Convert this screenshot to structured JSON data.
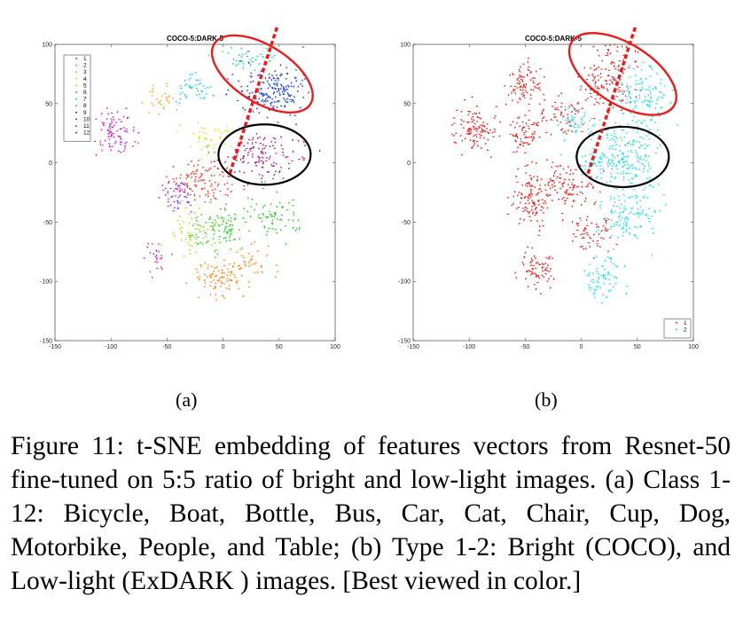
{
  "chart_data": [
    {
      "type": "scatter",
      "title": "COCO-5:DARK-5",
      "xlim": [
        -150,
        100
      ],
      "ylim": [
        -150,
        100
      ],
      "xticks": [
        -150,
        -100,
        -50,
        0,
        50,
        100
      ],
      "yticks": [
        -150,
        -100,
        -50,
        0,
        50,
        100
      ],
      "legend_position": "top-left",
      "series": [
        {
          "name": "1",
          "color": "#f03a2a",
          "clusters": [
            {
              "center": [
                -20,
                -15
              ],
              "spread": [
                14,
                10
              ],
              "count": 110
            }
          ]
        },
        {
          "name": "2",
          "color": "#ff7f0e",
          "clusters": [
            {
              "center": [
                -3,
                -95
              ],
              "spread": [
                12,
                8
              ],
              "count": 90
            },
            {
              "center": [
                25,
                -85
              ],
              "spread": [
                9,
                7
              ],
              "count": 40
            }
          ]
        },
        {
          "name": "3",
          "color": "#f5a623",
          "clusters": [
            {
              "center": [
                -52,
                55
              ],
              "spread": [
                7,
                6
              ],
              "count": 30
            }
          ]
        },
        {
          "name": "4",
          "color": "#e8e020",
          "clusters": [
            {
              "center": [
                -10,
                20
              ],
              "spread": [
                10,
                8
              ],
              "count": 45
            }
          ]
        },
        {
          "name": "5",
          "color": "#a8d820",
          "clusters": [
            {
              "center": [
                -25,
                -60
              ],
              "spread": [
                12,
                8
              ],
              "count": 60
            }
          ]
        },
        {
          "name": "6",
          "color": "#22cc22",
          "clusters": [
            {
              "center": [
                -5,
                -55
              ],
              "spread": [
                14,
                8
              ],
              "count": 90
            },
            {
              "center": [
                45,
                -45
              ],
              "spread": [
                12,
                10
              ],
              "count": 70
            }
          ]
        },
        {
          "name": "7",
          "color": "#22c0a0",
          "clusters": [
            {
              "center": [
                20,
                88
              ],
              "spread": [
                12,
                6
              ],
              "count": 45
            }
          ]
        },
        {
          "name": "8",
          "color": "#20c8e8",
          "clusters": [
            {
              "center": [
                -25,
                63
              ],
              "spread": [
                8,
                6
              ],
              "count": 45
            }
          ]
        },
        {
          "name": "9",
          "color": "#1e3cd8",
          "clusters": [
            {
              "center": [
                45,
                60
              ],
              "spread": [
                16,
                11
              ],
              "count": 190
            }
          ]
        },
        {
          "name": "10",
          "color": "#8a2be2",
          "clusters": [
            {
              "center": [
                -40,
                -28
              ],
              "spread": [
                7,
                8
              ],
              "count": 50
            }
          ]
        },
        {
          "name": "11",
          "color": "#d020c8",
          "clusters": [
            {
              "center": [
                -95,
                28
              ],
              "spread": [
                9,
                9
              ],
              "count": 90
            },
            {
              "center": [
                -60,
                -80
              ],
              "spread": [
                6,
                6
              ],
              "count": 25
            }
          ]
        },
        {
          "name": "12",
          "color": "#a01870",
          "clusters": [
            {
              "center": [
                35,
                5
              ],
              "spread": [
                16,
                12
              ],
              "count": 130
            }
          ]
        }
      ]
    },
    {
      "type": "scatter",
      "title": "COCO-5:DARK-5",
      "xlim": [
        -150,
        100
      ],
      "ylim": [
        -150,
        100
      ],
      "xticks": [
        -150,
        -100,
        -50,
        0,
        50,
        100
      ],
      "yticks": [
        -150,
        -100,
        -50,
        0,
        50,
        100
      ],
      "legend_position": "bottom-right",
      "series": [
        {
          "name": "1",
          "color": "#e51e1e",
          "clusters": [
            {
              "center": [
                -95,
                28
              ],
              "spread": [
                9,
                9
              ],
              "count": 110
            },
            {
              "center": [
                -50,
                65
              ],
              "spread": [
                9,
                10
              ],
              "count": 90
            },
            {
              "center": [
                -50,
                25
              ],
              "spread": [
                8,
                7
              ],
              "count": 70
            },
            {
              "center": [
                -45,
                -30
              ],
              "spread": [
                9,
                12
              ],
              "count": 110
            },
            {
              "center": [
                -15,
                -20
              ],
              "spread": [
                14,
                10
              ],
              "count": 110
            },
            {
              "center": [
                -40,
                -90
              ],
              "spread": [
                9,
                8
              ],
              "count": 70
            },
            {
              "center": [
                10,
                -60
              ],
              "spread": [
                9,
                8
              ],
              "count": 60
            },
            {
              "center": [
                25,
                70
              ],
              "spread": [
                14,
                15
              ],
              "count": 150
            },
            {
              "center": [
                -15,
                40
              ],
              "spread": [
                10,
                8
              ],
              "count": 60
            }
          ]
        },
        {
          "name": "2",
          "color": "#22e0e0",
          "clusters": [
            {
              "center": [
                35,
                5
              ],
              "spread": [
                18,
                14
              ],
              "count": 250
            },
            {
              "center": [
                55,
                55
              ],
              "spread": [
                12,
                14
              ],
              "count": 120
            },
            {
              "center": [
                40,
                -45
              ],
              "spread": [
                14,
                12
              ],
              "count": 120
            },
            {
              "center": [
                20,
                -95
              ],
              "spread": [
                9,
                10
              ],
              "count": 70
            },
            {
              "center": [
                -5,
                35
              ],
              "spread": [
                8,
                7
              ],
              "count": 40
            }
          ]
        }
      ]
    }
  ],
  "subfig_labels": {
    "a": "(a)",
    "b": "(b)"
  },
  "caption": "Figure 11: t-SNE embedding of features vectors from Resnet-50 fine-tuned on 5:5 ratio of bright and low-light images. (a) Class 1-12: Bicycle, Boat, Bottle, Bus, Car, Cat, Chair, Cup, Dog, Motorbike, People, and Table; (b) Type 1-2: Bright (COCO), and Low-light (ExDARK ) images. [Best viewed in color.]",
  "annotation_colors": {
    "red_ellipse": "#e51e1e",
    "black_ellipse": "#000000",
    "dashed_line": "#e51e1e"
  }
}
